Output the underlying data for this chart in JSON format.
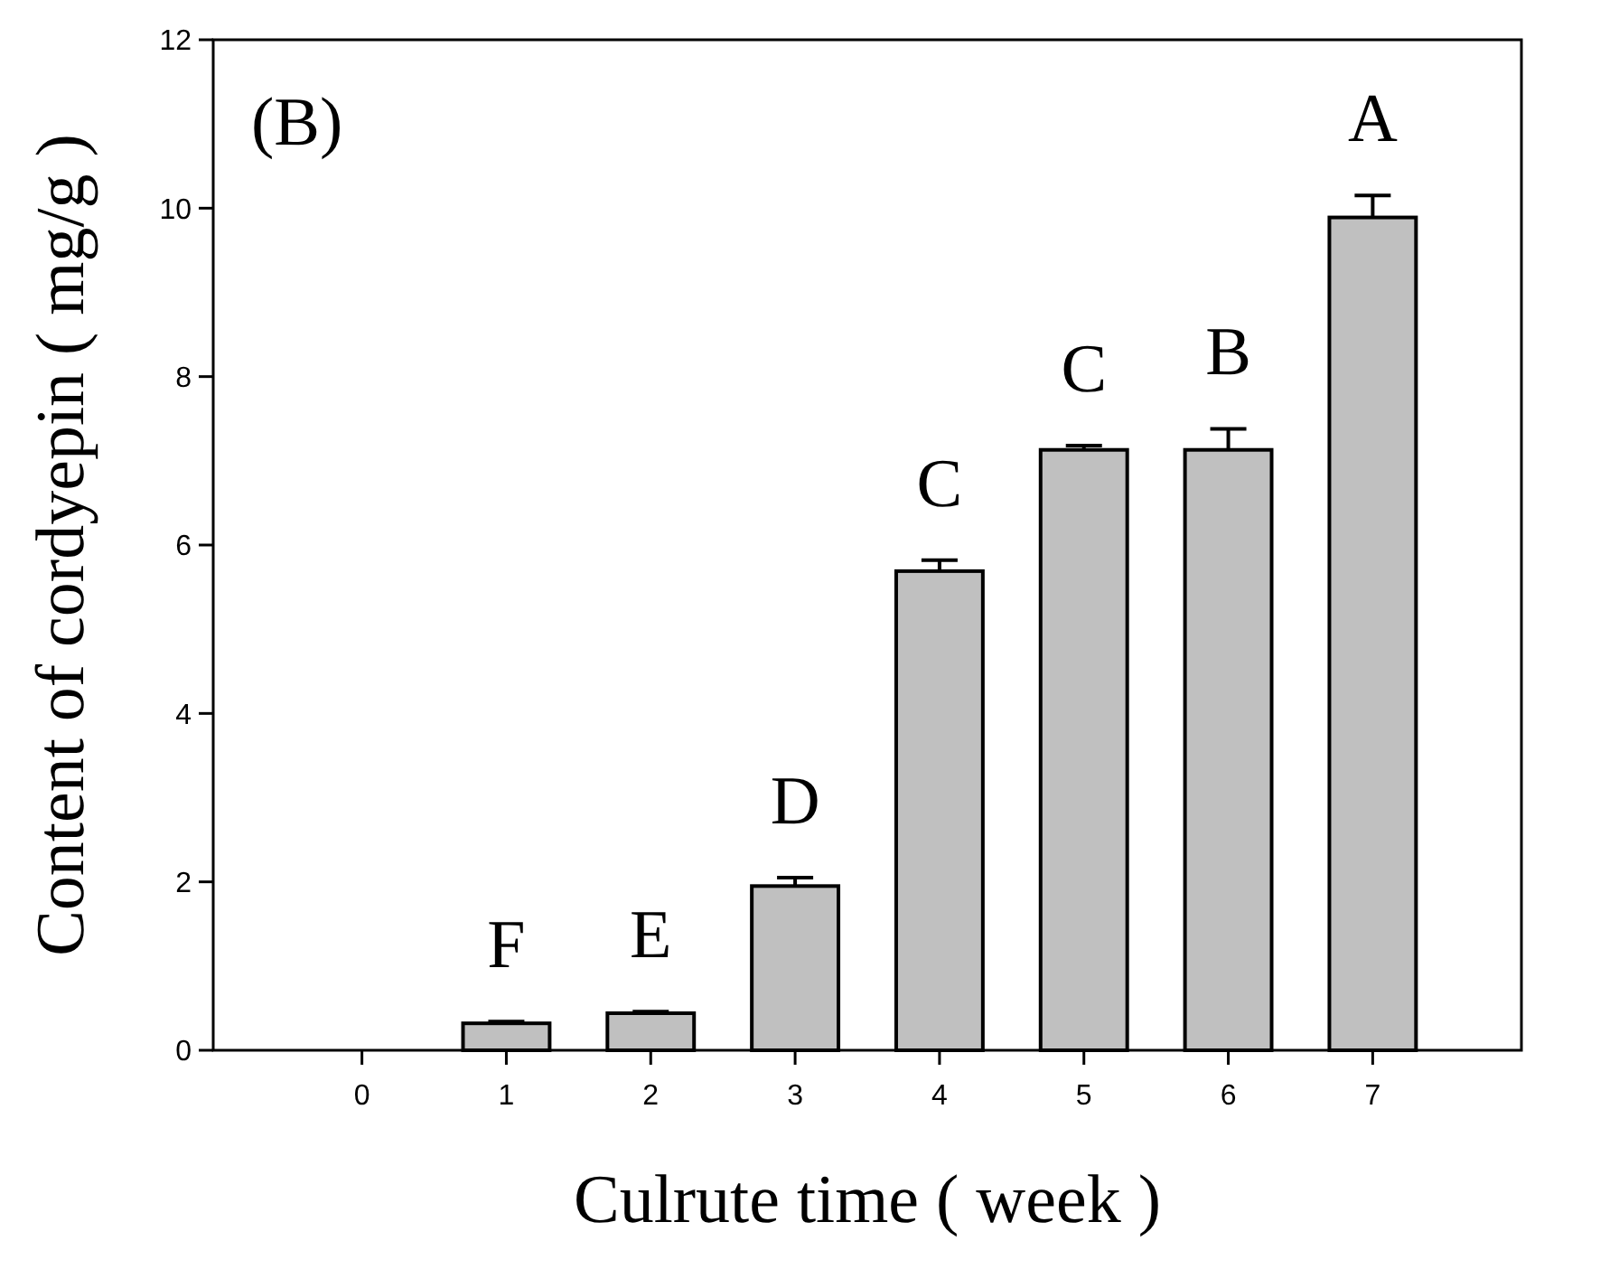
{
  "chart_data": {
    "type": "bar",
    "xlabel": "Culrute time ( week )",
    "ylabel": "Content of cordyepin ( mg/g )",
    "categories": [
      "0",
      "1",
      "2",
      "3",
      "4",
      "5",
      "6",
      "7"
    ],
    "values": [
      0,
      0.32,
      0.44,
      1.95,
      5.69,
      7.13,
      7.13,
      9.89
    ],
    "errors": [
      null,
      0.02,
      0.02,
      0.1,
      0.13,
      0.05,
      0.25,
      0.26
    ],
    "color": "#c0c0c0",
    "ylim": [
      0,
      12
    ],
    "yticks": [
      0,
      2,
      4,
      6,
      8,
      10,
      12
    ],
    "grid": false,
    "annotations": [
      "(B)",
      {
        "text": "F",
        "x": "1",
        "y": 0.34
      },
      {
        "text": "E",
        "x": "2",
        "y": 0.46
      },
      {
        "text": "D",
        "x": "3",
        "y": 2.05
      },
      {
        "text": "C",
        "x": "4",
        "y": 5.82
      },
      {
        "text": "C",
        "x": "5",
        "y": 7.18
      },
      {
        "text": "B",
        "x": "6",
        "y": 7.38
      },
      {
        "text": "A",
        "x": "7",
        "y": 10.15
      }
    ]
  }
}
